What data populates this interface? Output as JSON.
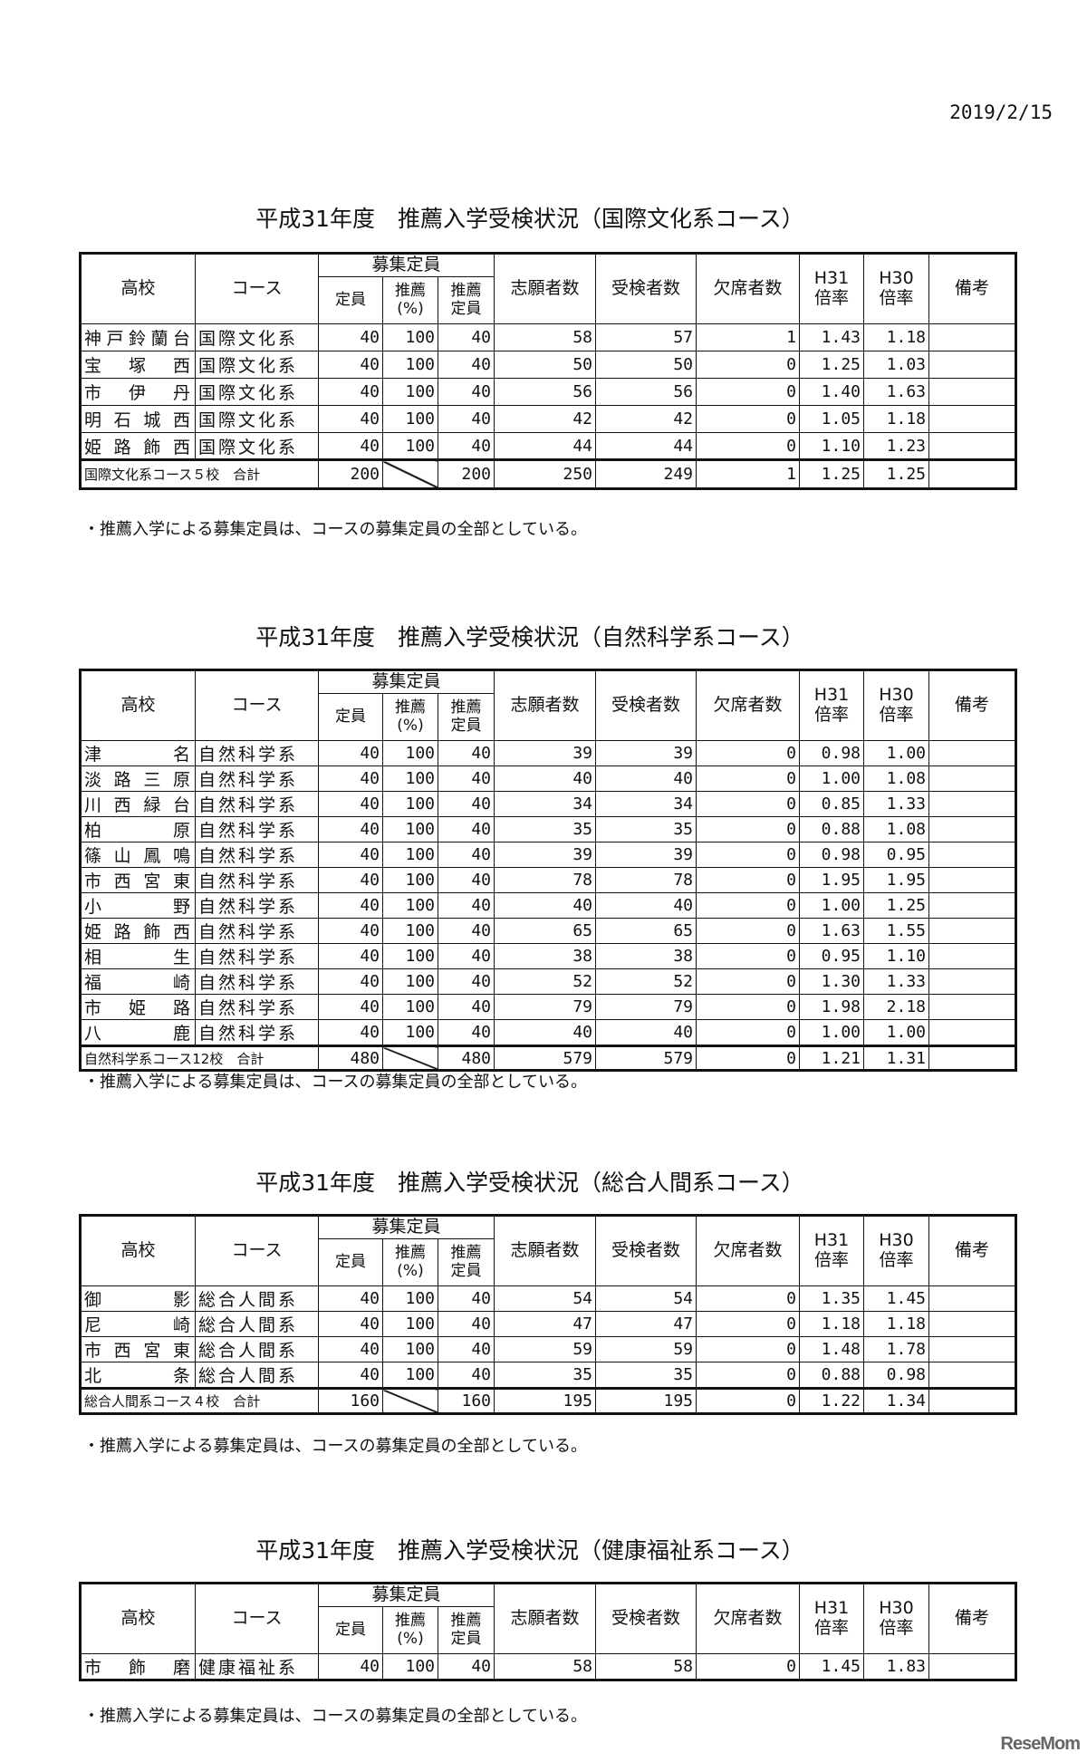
{
  "date": "2019/2/15",
  "headers": {
    "school": "高校",
    "course": "コース",
    "capacity_group": "募集定員",
    "capacity": "定員",
    "rec_pct": "推薦\n(%)",
    "rec_capacity": "推薦\n定員",
    "applicants": "志願者数",
    "examinees": "受検者数",
    "absentees": "欠席者数",
    "h31": "H31\n倍率",
    "h30": "H30\n倍率",
    "remarks": "備考"
  },
  "note": "・推薦入学による募集定員は、コースの募集定員の全部としている。",
  "sections": [
    {
      "title": "平成31年度　推薦入学受検状況（国際文化系コース）",
      "rows": [
        [
          "神戸鈴蘭台",
          "国際文化系",
          "40",
          "100",
          "40",
          "58",
          "57",
          "1",
          "1.43",
          "1.18",
          ""
        ],
        [
          "宝　塚　西",
          "国際文化系",
          "40",
          "100",
          "40",
          "50",
          "50",
          "0",
          "1.25",
          "1.03",
          ""
        ],
        [
          "市　伊　丹",
          "国際文化系",
          "40",
          "100",
          "40",
          "56",
          "56",
          "0",
          "1.40",
          "1.63",
          ""
        ],
        [
          "明石城西",
          "国際文化系",
          "40",
          "100",
          "40",
          "42",
          "42",
          "0",
          "1.05",
          "1.18",
          ""
        ],
        [
          "姫路飾西",
          "国際文化系",
          "40",
          "100",
          "40",
          "44",
          "44",
          "0",
          "1.10",
          "1.23",
          ""
        ]
      ],
      "total": [
        "国際文化系コース５校　合計",
        "200",
        "",
        "200",
        "250",
        "249",
        "1",
        "1.25",
        "1.25",
        ""
      ]
    },
    {
      "title": "平成31年度　推薦入学受検状況（自然科学系コース）",
      "rows": [
        [
          "津　　　名",
          "自然科学系",
          "40",
          "100",
          "40",
          "39",
          "39",
          "0",
          "0.98",
          "1.00",
          ""
        ],
        [
          "淡路三原",
          "自然科学系",
          "40",
          "100",
          "40",
          "40",
          "40",
          "0",
          "1.00",
          "1.08",
          ""
        ],
        [
          "川西緑台",
          "自然科学系",
          "40",
          "100",
          "40",
          "34",
          "34",
          "0",
          "0.85",
          "1.33",
          ""
        ],
        [
          "柏　　　原",
          "自然科学系",
          "40",
          "100",
          "40",
          "35",
          "35",
          "0",
          "0.88",
          "1.08",
          ""
        ],
        [
          "篠山鳳鳴",
          "自然科学系",
          "40",
          "100",
          "40",
          "39",
          "39",
          "0",
          "0.98",
          "0.95",
          ""
        ],
        [
          "市西宮東",
          "自然科学系",
          "40",
          "100",
          "40",
          "78",
          "78",
          "0",
          "1.95",
          "1.95",
          ""
        ],
        [
          "小　　　野",
          "自然科学系",
          "40",
          "100",
          "40",
          "40",
          "40",
          "0",
          "1.00",
          "1.25",
          ""
        ],
        [
          "姫路飾西",
          "自然科学系",
          "40",
          "100",
          "40",
          "65",
          "65",
          "0",
          "1.63",
          "1.55",
          ""
        ],
        [
          "相　　　生",
          "自然科学系",
          "40",
          "100",
          "40",
          "38",
          "38",
          "0",
          "0.95",
          "1.10",
          ""
        ],
        [
          "福　　　崎",
          "自然科学系",
          "40",
          "100",
          "40",
          "52",
          "52",
          "0",
          "1.30",
          "1.33",
          ""
        ],
        [
          "市　姫　路",
          "自然科学系",
          "40",
          "100",
          "40",
          "79",
          "79",
          "0",
          "1.98",
          "2.18",
          ""
        ],
        [
          "八　　　鹿",
          "自然科学系",
          "40",
          "100",
          "40",
          "40",
          "40",
          "0",
          "1.00",
          "1.00",
          ""
        ]
      ],
      "total": [
        "自然科学系コース12校　合計",
        "480",
        "",
        "480",
        "579",
        "579",
        "0",
        "1.21",
        "1.31",
        ""
      ]
    },
    {
      "title": "平成31年度　推薦入学受検状況（総合人間系コース）",
      "rows": [
        [
          "御　　　影",
          "総合人間系",
          "40",
          "100",
          "40",
          "54",
          "54",
          "0",
          "1.35",
          "1.45",
          ""
        ],
        [
          "尼　　　崎",
          "総合人間系",
          "40",
          "100",
          "40",
          "47",
          "47",
          "0",
          "1.18",
          "1.18",
          ""
        ],
        [
          "市西宮東",
          "総合人間系",
          "40",
          "100",
          "40",
          "59",
          "59",
          "0",
          "1.48",
          "1.78",
          ""
        ],
        [
          "北　　　条",
          "総合人間系",
          "40",
          "100",
          "40",
          "35",
          "35",
          "0",
          "0.88",
          "0.98",
          ""
        ]
      ],
      "total": [
        "総合人間系コース４校　合計",
        "160",
        "",
        "160",
        "195",
        "195",
        "0",
        "1.22",
        "1.34",
        ""
      ]
    },
    {
      "title": "平成31年度　推薦入学受検状況（健康福祉系コース）",
      "rows": [
        [
          "市　飾　磨",
          "健康福祉系",
          "40",
          "100",
          "40",
          "58",
          "58",
          "0",
          "1.45",
          "1.83",
          ""
        ]
      ]
    }
  ],
  "logo": "ReseMom"
}
